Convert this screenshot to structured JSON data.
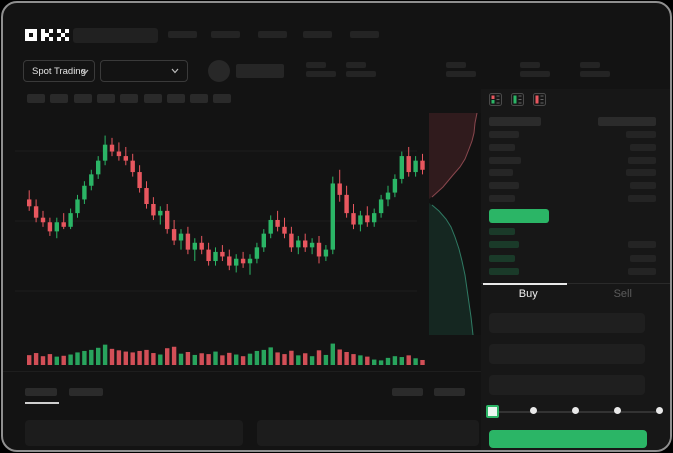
{
  "app": {
    "logo": "OKX"
  },
  "nav": {
    "skeleton_items": 5
  },
  "market_header": {
    "pair_mode": {
      "label": "Spot Trading"
    },
    "pair_selector": {
      "value": ""
    },
    "stat_groups": 5
  },
  "chart_toolbar": {
    "interval_slots": 9,
    "icons": [
      "zigzag-icon",
      "chevron-down-icon",
      "indicator-icon",
      "chevron-down-icon",
      "wave-icon",
      "compare-icon",
      "camera-icon",
      "history-icon",
      "fullscreen-icon"
    ]
  },
  "orderbook": {
    "mode_icons": [
      "book-split-icon",
      "book-bids-icon",
      "book-asks-icon"
    ],
    "header": {
      "lw": 52,
      "rw": 58
    },
    "ask_rows": [
      {
        "lw": 30,
        "rw": 30
      },
      {
        "lw": 26,
        "rw": 26
      },
      {
        "lw": 32,
        "rw": 28
      },
      {
        "lw": 24,
        "rw": 30
      },
      {
        "lw": 30,
        "rw": 26
      },
      {
        "lw": 26,
        "rw": 28
      }
    ],
    "last_price_pill": {
      "color": "#2bb566"
    },
    "bid_rows": [
      {
        "lw": 26,
        "rw": 0
      },
      {
        "lw": 30,
        "rw": 28
      },
      {
        "lw": 26,
        "rw": 26
      },
      {
        "lw": 30,
        "rw": 28
      }
    ]
  },
  "trade_panel": {
    "tabs": [
      {
        "label": "Buy",
        "active": true
      },
      {
        "label": "Sell",
        "active": false
      }
    ],
    "input_slots": 3,
    "slider": {
      "steps": 5,
      "active_step": 0
    },
    "submit_color": "#2bb566"
  },
  "bottom_panel": {
    "tab_slots": 2,
    "right_slots": 2,
    "content_slots": 2
  },
  "colors": {
    "up": "#2bb566",
    "down": "#e8575f"
  },
  "chart_data": [
    {
      "type": "candlestick",
      "title": "",
      "xlabel": "",
      "ylabel": "",
      "axes_visible": false,
      "y_range": [
        26,
        90
      ],
      "y_unit": "relative (no axis labels visible in screenshot)",
      "colors": {
        "up": "#2bb566",
        "down": "#e8575f"
      },
      "candles": [
        [
          60,
          64,
          55,
          57
        ],
        [
          57,
          60,
          50,
          52
        ],
        [
          52,
          55,
          48,
          50
        ],
        [
          50,
          52,
          44,
          46
        ],
        [
          46,
          52,
          43,
          50
        ],
        [
          50,
          54,
          47,
          48
        ],
        [
          48,
          56,
          47,
          54
        ],
        [
          54,
          62,
          52,
          60
        ],
        [
          60,
          68,
          58,
          66
        ],
        [
          66,
          73,
          64,
          71
        ],
        [
          71,
          79,
          69,
          77
        ],
        [
          77,
          88,
          75,
          84
        ],
        [
          84,
          87,
          79,
          81
        ],
        [
          81,
          85,
          77,
          79
        ],
        [
          79,
          83,
          75,
          77
        ],
        [
          77,
          80,
          70,
          72
        ],
        [
          72,
          75,
          63,
          65
        ],
        [
          65,
          68,
          56,
          58
        ],
        [
          58,
          61,
          51,
          53
        ],
        [
          53,
          57,
          49,
          55
        ],
        [
          55,
          58,
          45,
          47
        ],
        [
          47,
          51,
          40,
          42
        ],
        [
          42,
          47,
          38,
          45
        ],
        [
          45,
          48,
          36,
          38
        ],
        [
          38,
          43,
          33,
          41
        ],
        [
          41,
          44,
          36,
          38
        ],
        [
          38,
          41,
          31,
          33
        ],
        [
          33,
          39,
          31,
          37
        ],
        [
          37,
          40,
          33,
          35
        ],
        [
          35,
          38,
          29,
          31
        ],
        [
          31,
          36,
          28,
          34
        ],
        [
          34,
          37,
          30,
          32
        ],
        [
          32,
          36,
          27,
          34
        ],
        [
          34,
          41,
          32,
          39
        ],
        [
          39,
          47,
          37,
          45
        ],
        [
          45,
          53,
          43,
          51
        ],
        [
          51,
          55,
          46,
          48
        ],
        [
          48,
          52,
          43,
          45
        ],
        [
          45,
          48,
          37,
          39
        ],
        [
          39,
          44,
          36,
          42
        ],
        [
          42,
          45,
          37,
          39
        ],
        [
          39,
          43,
          36,
          41
        ],
        [
          41,
          44,
          32,
          35
        ],
        [
          35,
          40,
          33,
          38
        ],
        [
          38,
          70,
          36,
          67
        ],
        [
          67,
          73,
          59,
          62
        ],
        [
          62,
          66,
          52,
          54
        ],
        [
          54,
          58,
          47,
          49
        ],
        [
          49,
          55,
          46,
          53
        ],
        [
          53,
          57,
          48,
          50
        ],
        [
          50,
          56,
          48,
          54
        ],
        [
          54,
          62,
          52,
          60
        ],
        [
          60,
          66,
          57,
          63
        ],
        [
          63,
          71,
          61,
          69
        ],
        [
          69,
          81,
          67,
          79
        ],
        [
          79,
          83,
          70,
          72
        ],
        [
          72,
          79,
          70,
          77
        ],
        [
          77,
          80,
          71,
          73
        ]
      ],
      "volume": [
        35,
        45,
        30,
        40,
        28,
        32,
        38,
        48,
        55,
        60,
        70,
        85,
        65,
        58,
        52,
        48,
        55,
        60,
        45,
        38,
        68,
        75,
        42,
        50,
        36,
        44,
        40,
        52,
        34,
        46,
        38,
        30,
        42,
        55,
        60,
        72,
        48,
        40,
        56,
        34,
        44,
        30,
        58,
        36,
        90,
        62,
        50,
        40,
        34,
        28,
        14,
        10,
        22,
        30,
        26,
        34,
        20,
        12
      ]
    },
    {
      "type": "area",
      "title": "depth-preview-strip",
      "orientation": "vertical",
      "local_size": [
        52,
        222
      ],
      "series": [
        {
          "name": "asks",
          "line_color": "#8a474e",
          "fill_color": "rgba(122,52,58,0.30)",
          "points": [
            [
              48,
              0
            ],
            [
              46,
              10
            ],
            [
              45,
              20
            ],
            [
              43,
              28
            ],
            [
              40,
              36
            ],
            [
              36,
              46
            ],
            [
              31,
              54
            ],
            [
              24,
              62
            ],
            [
              14,
              74
            ],
            [
              3,
              84
            ]
          ]
        },
        {
          "name": "bids",
          "line_color": "#2f7a63",
          "fill_color": "rgba(34,104,80,0.26)",
          "points": [
            [
              3,
              92
            ],
            [
              10,
              98
            ],
            [
              17,
              106
            ],
            [
              22,
              114
            ],
            [
              26,
              124
            ],
            [
              30,
              136
            ],
            [
              33,
              148
            ],
            [
              36,
              162
            ],
            [
              38,
              176
            ],
            [
              40,
              190
            ],
            [
              42,
              204
            ],
            [
              44,
              222
            ]
          ]
        }
      ]
    }
  ]
}
